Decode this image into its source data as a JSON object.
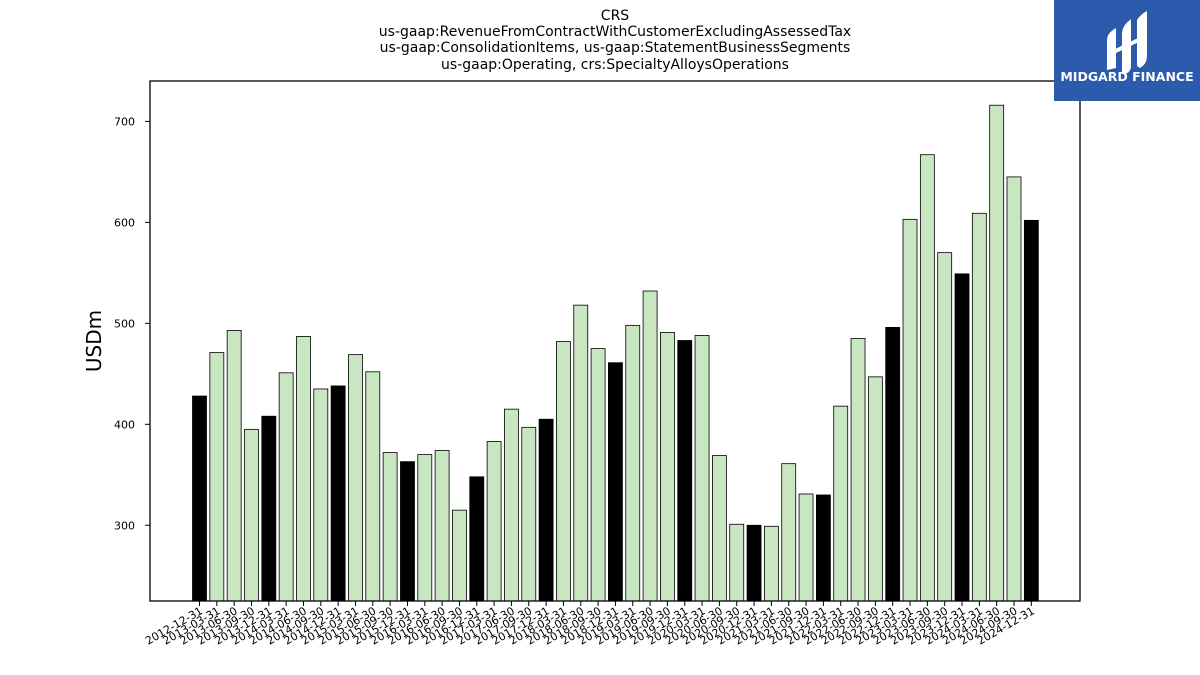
{
  "colors": {
    "light_bar": "#c8e6c2",
    "dark_bar": "#000000",
    "bar_edge": "#000000",
    "logo_bg": "#2c5aad"
  },
  "logo": {
    "text": "MIDGARD FINANCE",
    "icon": "midgard-logo-icon"
  },
  "chart_data": {
    "type": "bar",
    "title_lines": [
      "CRS",
      "us-gaap:RevenueFromContractWithCustomerExcludingAssessedTax",
      "us-gaap:ConsolidationItems, us-gaap:StatementBusinessSegments",
      "us-gaap:Operating, crs:SpecialtyAlloysOperations"
    ],
    "xlabel": "",
    "ylabel": "USDm",
    "ylim": [
      225,
      740
    ],
    "yticks": [
      300,
      400,
      500,
      600,
      700
    ],
    "grid": false,
    "legend": null,
    "categories": [
      "2012-12-31",
      "2013-03-31",
      "2013-06-30",
      "2013-09-30",
      "2013-12-31",
      "2014-03-31",
      "2014-06-30",
      "2014-09-30",
      "2014-12-31",
      "2015-03-31",
      "2015-06-30",
      "2015-09-30",
      "2015-12-31",
      "2016-03-31",
      "2016-06-30",
      "2016-09-30",
      "2016-12-31",
      "2017-03-31",
      "2017-06-30",
      "2017-09-30",
      "2017-12-31",
      "2018-03-31",
      "2018-06-30",
      "2018-09-30",
      "2018-12-31",
      "2019-03-31",
      "2019-06-30",
      "2019-09-30",
      "2019-12-31",
      "2020-03-31",
      "2020-06-30",
      "2020-09-30",
      "2020-12-31",
      "2021-03-31",
      "2021-06-30",
      "2021-09-30",
      "2021-12-31",
      "2022-03-31",
      "2022-06-30",
      "2022-09-30",
      "2022-12-31",
      "2023-03-31",
      "2023-06-30",
      "2023-09-30",
      "2023-12-31",
      "2024-03-31",
      "2024-06-30",
      "2024-09-30",
      "2024-12-31"
    ],
    "values": [
      428,
      471,
      493,
      395,
      408,
      451,
      487,
      435,
      438,
      469,
      452,
      372,
      363,
      370,
      374,
      315,
      348,
      383,
      415,
      397,
      405,
      482,
      518,
      475,
      461,
      498,
      532,
      491,
      483,
      488,
      369,
      301,
      300,
      299,
      361,
      331,
      330,
      418,
      485,
      447,
      496,
      603,
      667,
      570,
      549,
      609,
      716,
      645,
      602
    ],
    "highlight": [
      true,
      false,
      false,
      false,
      true,
      false,
      false,
      false,
      true,
      false,
      false,
      false,
      true,
      false,
      false,
      false,
      true,
      false,
      false,
      false,
      true,
      false,
      false,
      false,
      true,
      false,
      false,
      false,
      true,
      false,
      false,
      false,
      true,
      false,
      false,
      false,
      true,
      false,
      false,
      false,
      true,
      false,
      false,
      false,
      true,
      false,
      false,
      false,
      true
    ]
  }
}
